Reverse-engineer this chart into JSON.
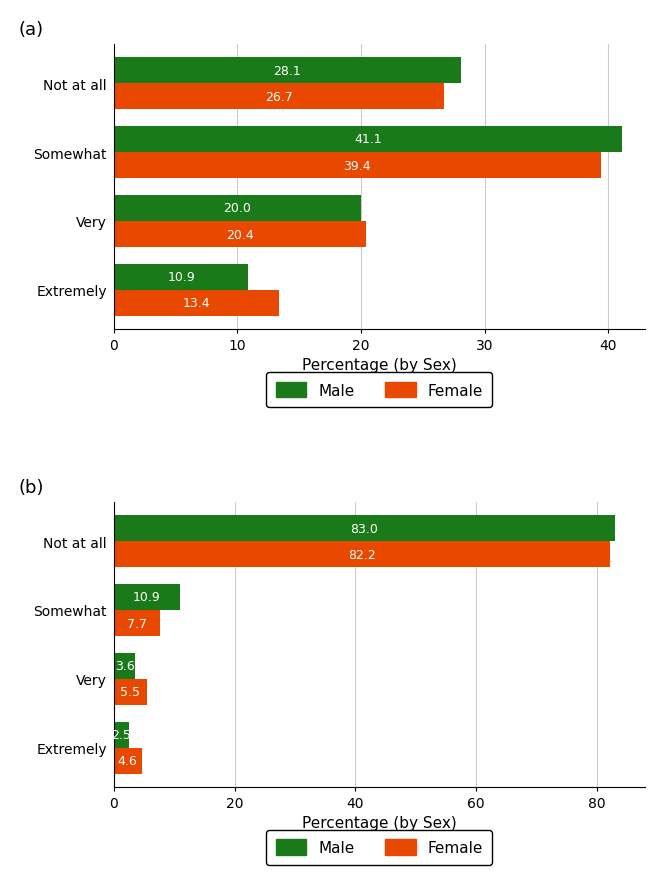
{
  "chart_a": {
    "label": "(a)",
    "categories": [
      "Not at all",
      "Somewhat",
      "Very",
      "Extremely"
    ],
    "male_values": [
      28.1,
      41.1,
      20.0,
      10.9
    ],
    "female_values": [
      26.7,
      39.4,
      20.4,
      13.4
    ],
    "xlim": [
      0,
      43
    ],
    "xticks": [
      0,
      10,
      20,
      30,
      40
    ],
    "xlabel": "Percentage (by Sex)"
  },
  "chart_b": {
    "label": "(b)",
    "categories": [
      "Not at all",
      "Somewhat",
      "Very",
      "Extremely"
    ],
    "male_values": [
      83.0,
      10.9,
      3.6,
      2.5
    ],
    "female_values": [
      82.2,
      7.7,
      5.5,
      4.6
    ],
    "xlim": [
      0,
      88
    ],
    "xticks": [
      0,
      20,
      40,
      60,
      80
    ],
    "xlabel": "Percentage (by Sex)"
  },
  "male_color": "#1a7a1a",
  "female_color": "#e84800",
  "bar_height": 0.38,
  "label_fontsize": 9,
  "tick_fontsize": 10,
  "axis_label_fontsize": 11,
  "legend_fontsize": 11,
  "panel_label_fontsize": 13,
  "text_color": "white",
  "background_color": "#ffffff",
  "grid_color": "#cccccc"
}
